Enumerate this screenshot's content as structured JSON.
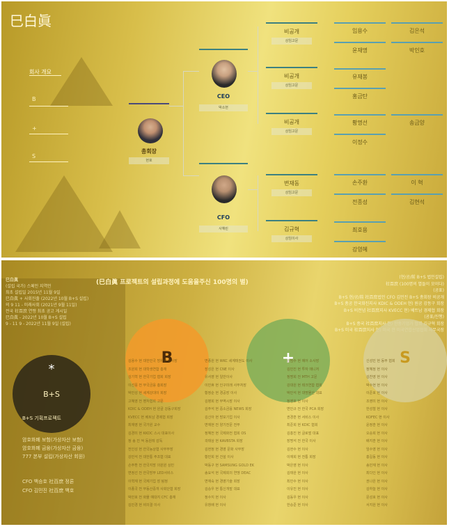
{
  "top": {
    "logo": "巳白眞",
    "side_menu": {
      "title": "회사 개요",
      "items": [
        "B",
        "+",
        "S"
      ]
    },
    "chart": {
      "chairman": {
        "name": "총회장",
        "sub": "현호"
      },
      "ceo": {
        "name": "CEO",
        "sub": "박소현"
      },
      "cfo": {
        "name": "CFO",
        "sub": "사혜린"
      },
      "managers": [
        {
          "name": "비공개",
          "sub": "상임고문"
        },
        {
          "name": "비공개",
          "sub": "상임고문"
        },
        {
          "name": "비공개",
          "sub": "상임고문"
        },
        {
          "name": "변재동",
          "sub": "상임고문"
        },
        {
          "name": "김규혁",
          "sub": "상임이사"
        }
      ],
      "staff": [
        [
          "임용수",
          "김은석"
        ],
        [
          "윤재명",
          "박인호"
        ],
        [
          "유재봉",
          ""
        ],
        [
          "홍금탄",
          ""
        ],
        [
          "황명선",
          "송금양"
        ],
        [
          "이정수",
          ""
        ],
        [
          "손주환",
          "이 혁"
        ],
        [
          "전종성",
          "김현석"
        ],
        [
          "최호용",
          ""
        ],
        [
          "강영혜",
          ""
        ]
      ]
    }
  },
  "bottom": {
    "headline": "(巳白眞 프로젝트의 설립과정에 도움을주신 100명의 별)",
    "left_lines": [
      "巳白眞",
      "(설립 국가) 스페인 지역인",
      "최초 설립일 2015년 11월 9일",
      "巳白眞 + 사회진출 (2022년 10월 B+S 설립)",
      "의 9 11 - 미래사회 (2021년 9월 11일)",
      "전국 社百庶 연맹 최초 공고 게시일",
      "巳白眞 - 2022년 10월 B+S 설립",
      "9 - 11 9 - 2022년 11월 9일 (설립)"
    ],
    "right_lines": [
      "(현/공/前 B+S 법인설립)",
      "社百庶 (100명의 별들이 모이다)",
      "(공표)",
      "B+S 현/공/前 社百庶법인 CFO 김민진 B+S 총회장 비공개",
      "B+S 총공 한국화진지사 KDIC & ODEH 현) 원공 강동구 회장",
      "B+S 비전념 社百庶지사 KVECC 현) 베트남 경제협 회장",
      "(공표/진행)",
      "B+S 중국 社百庶지사 현) 한중기업가 협회 김규혁 회장",
      "B+S 미국 社百庶지사 현) 미국 한 미국연합산업협회 사무국장"
    ],
    "circle_labels": {
      "bs": "B+S",
      "star": "*",
      "b": "B",
      "plus": "+",
      "s": "S"
    },
    "bs_caption": "B+S 기획프로젝트",
    "bs_items": [
      "암호화폐 보험(가상자산 보험)",
      "암호화폐 금융(가상자산 금융)",
      "777 본부 설립(가상자산 회원)"
    ],
    "cfo_lines": [
      "CFO 백승호 社百庶 정론",
      "CFO 김민진 社百庶 백호"
    ],
    "columns": [
      [
        "김용수 현 대한민국 방위원 이사장",
        "조원희 현 대학생연합 총재",
        "김기혁 현 한국기업 협회 회장",
        "이선풍 전 부국금융 총회장",
        "박민성 현 세계강대이 회장",
        "고혜영 전 벤처협회 고문",
        "KDIC & ODEH 현 원골 강동구회장",
        "KVECC 현 베트남 경제협 회장",
        "최재영 현 국가원 교수",
        "김경미 현 KKDC 스시 대표이사",
        "정 송 진 억 동원레 감독",
        "전인성 현 한국농상협 사무부장",
        "강민석 전 대한통 주조협 대표",
        "손주환 전 한국지방 의원원 상민",
        "변정선 전 한국방부 LED서비스",
        "이혁재 현 국제기업 장 탐정",
        "이종국 전 부동산중개 사회단협 회장",
        "박민호 전 화물 예대지 CFC 총재",
        "김민경 현 비의결 이사"
      ],
      [
        "변종원 현 WKC 세계태권도 이사",
        "장성은 현 CNE 이사",
        "유서영 현 일반이사",
        "이민휴 현 인구미래 사무처장",
        "황정순 현 경공장 이사",
        "김병희 현 무역시장 이사",
        "김주석 현 중소금융 NEWS 회장",
        "김신아 현 방모기업 이사",
        "변재현 전 양기전문 전무",
        "정혜전 현 국제화전 협회 OS",
        "곽태상 현 KAVBSTA 회장",
        "김현정 현 경영 문화 사무장",
        "황민희 현 건설 이사",
        "박동구 현 SAMSUNG GOLD EK",
        "송요석 현 국제회의 연맹 DEAC",
        "변재숙 현 경영기술 회장",
        "김승우 현 통신개발 대표",
        "정수지 현 이사",
        "유창배 현 이사"
      ],
      [
        "김범수 현 에어 소사장",
        "김민진 현 투자 매니저",
        "정명희 전 MTH 고문",
        "강대원 현 테크연합 협회",
        "박민석 현 대명물산 대표",
        "정영호 현 이사",
        "변민규 전 한국 PCA 회장",
        "권경훈 현 서비스 이사",
        "최준희 현 KDIC 협회",
        "김홍진 현 글로벌 대표",
        "장명석 전 한국 이사",
        "김현수 현 이사",
        "이재희 현 전통 회장",
        "박은영 현 이사",
        "김태완 현 이사",
        "최민수 현 이사",
        "이유진 현 이사",
        "김동우 현 이사",
        "한승준 현 이사"
      ],
      [
        "신성민 현 동부 협회",
        "정혜정 현 이사",
        "김찬영 현 이사",
        "박수현 현 이사",
        "이준호 현 이사",
        "조영미 현 이사",
        "한성철 현 이사",
        "KOFEC 현 이사",
        "윤정훈 현 이사",
        "오승희 현 이사",
        "배지훈 현 이사",
        "임수영 현 이사",
        "홍길동 현 이사",
        "송민재 현 이사",
        "최다인 현 이사",
        "권나은 현 이사",
        "김하늘 현 이사",
        "문성호 현 이사",
        "서지원 현 이사"
      ]
    ],
    "colors": {
      "b": "#f39a2a",
      "plus": "#7fae58",
      "s": "#d8cf98",
      "bs": "#2b2616"
    }
  }
}
